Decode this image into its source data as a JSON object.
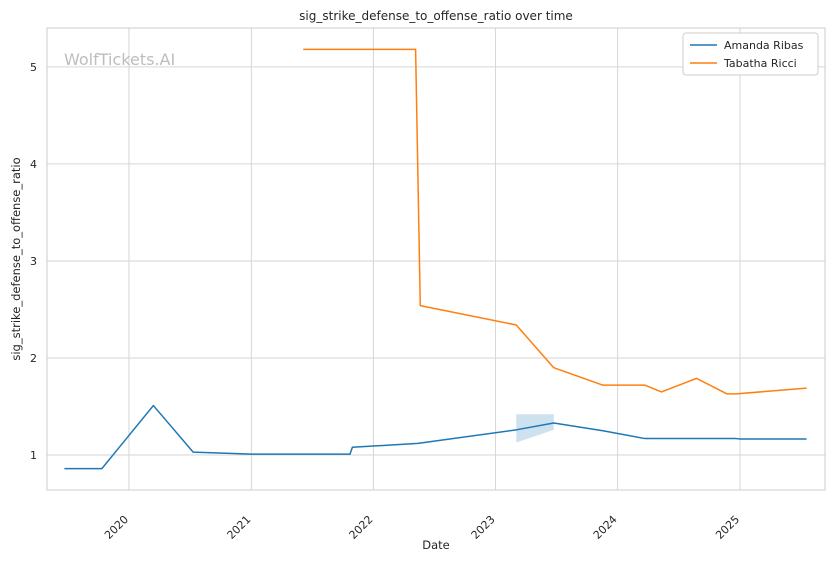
{
  "chart_data": {
    "type": "line",
    "title": "sig_strike_defense_to_offense_ratio over time",
    "xlabel": "Date",
    "ylabel": "sig_strike_defense_to_offense_ratio",
    "watermark": "WolfTickets.AI",
    "x_ticks": [
      "2020",
      "2021",
      "2022",
      "2023",
      "2024",
      "2025"
    ],
    "y_ticks": [
      "1",
      "2",
      "3",
      "4",
      "5"
    ],
    "xlim": [
      "2019-05-01",
      "2025-09-12"
    ],
    "ylim": [
      0.64,
      5.4
    ],
    "grid": true,
    "legend_position": "top-right",
    "series": [
      {
        "name": "Amanda Ribas",
        "color": "#1f77b4",
        "x": [
          "2019-06-22",
          "2019-10-12",
          "2020-03-14",
          "2020-07-11",
          "2021-01-01",
          "2021-10-23",
          "2021-10-30",
          "2022-05-14",
          "2023-03-04",
          "2023-06-24",
          "2023-11-18",
          "2024-03-23",
          "2024-12-20",
          "2025-01-01",
          "2025-07-19"
        ],
        "values": [
          0.86,
          0.86,
          1.51,
          1.03,
          1.01,
          1.01,
          1.08,
          1.12,
          1.26,
          1.33,
          1.25,
          1.17,
          1.17,
          1.165,
          1.165
        ],
        "band": {
          "x": [
            "2023-03-04",
            "2023-06-24"
          ],
          "upper": [
            1.42,
            1.42
          ],
          "lower": [
            1.13,
            1.26
          ]
        }
      },
      {
        "name": "Tabatha Ricci",
        "color": "#ff7f0e",
        "x": [
          "2021-06-05",
          "2022-05-07",
          "2022-05-21",
          "2023-03-04",
          "2023-06-24",
          "2023-11-18",
          "2024-03-23",
          "2024-05-11",
          "2024-08-24",
          "2024-11-23",
          "2024-12-20",
          "2025-07-19"
        ],
        "values": [
          5.18,
          5.18,
          2.54,
          2.34,
          1.9,
          1.72,
          1.72,
          1.65,
          1.79,
          1.63,
          1.63,
          1.69
        ]
      }
    ]
  }
}
